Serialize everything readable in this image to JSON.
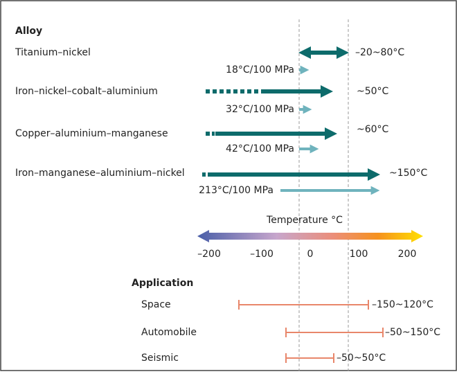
{
  "title": "Alloy",
  "alloys": [
    {
      "name": "Titanium–nickel",
      "transition": "–20~80°C",
      "stress_rate": "18°C/100 MPa"
    },
    {
      "name": "Iron–nickel–cobalt–aluminium",
      "transition": "~50°C",
      "stress_rate": "32°C/100 MPa"
    },
    {
      "name": "Copper–aluminium–manganese",
      "transition": "~60°C",
      "stress_rate": "42°C/100 MPa"
    },
    {
      "name": "Iron–manganese–aluminium–nickel",
      "transition": "~150°C",
      "stress_rate": "213°C/100 MPa"
    }
  ],
  "temperature_scale": {
    "label": "Temperature °C",
    "ticks": [
      "–200",
      "–100",
      "0",
      "100",
      "200"
    ]
  },
  "applications": {
    "title": "Application",
    "items": [
      {
        "name": "Space",
        "range": "–150~120°C"
      },
      {
        "name": "Automobile",
        "range": "–50~150°C"
      },
      {
        "name": "Seismic",
        "range": "–50~50°C"
      }
    ]
  }
}
